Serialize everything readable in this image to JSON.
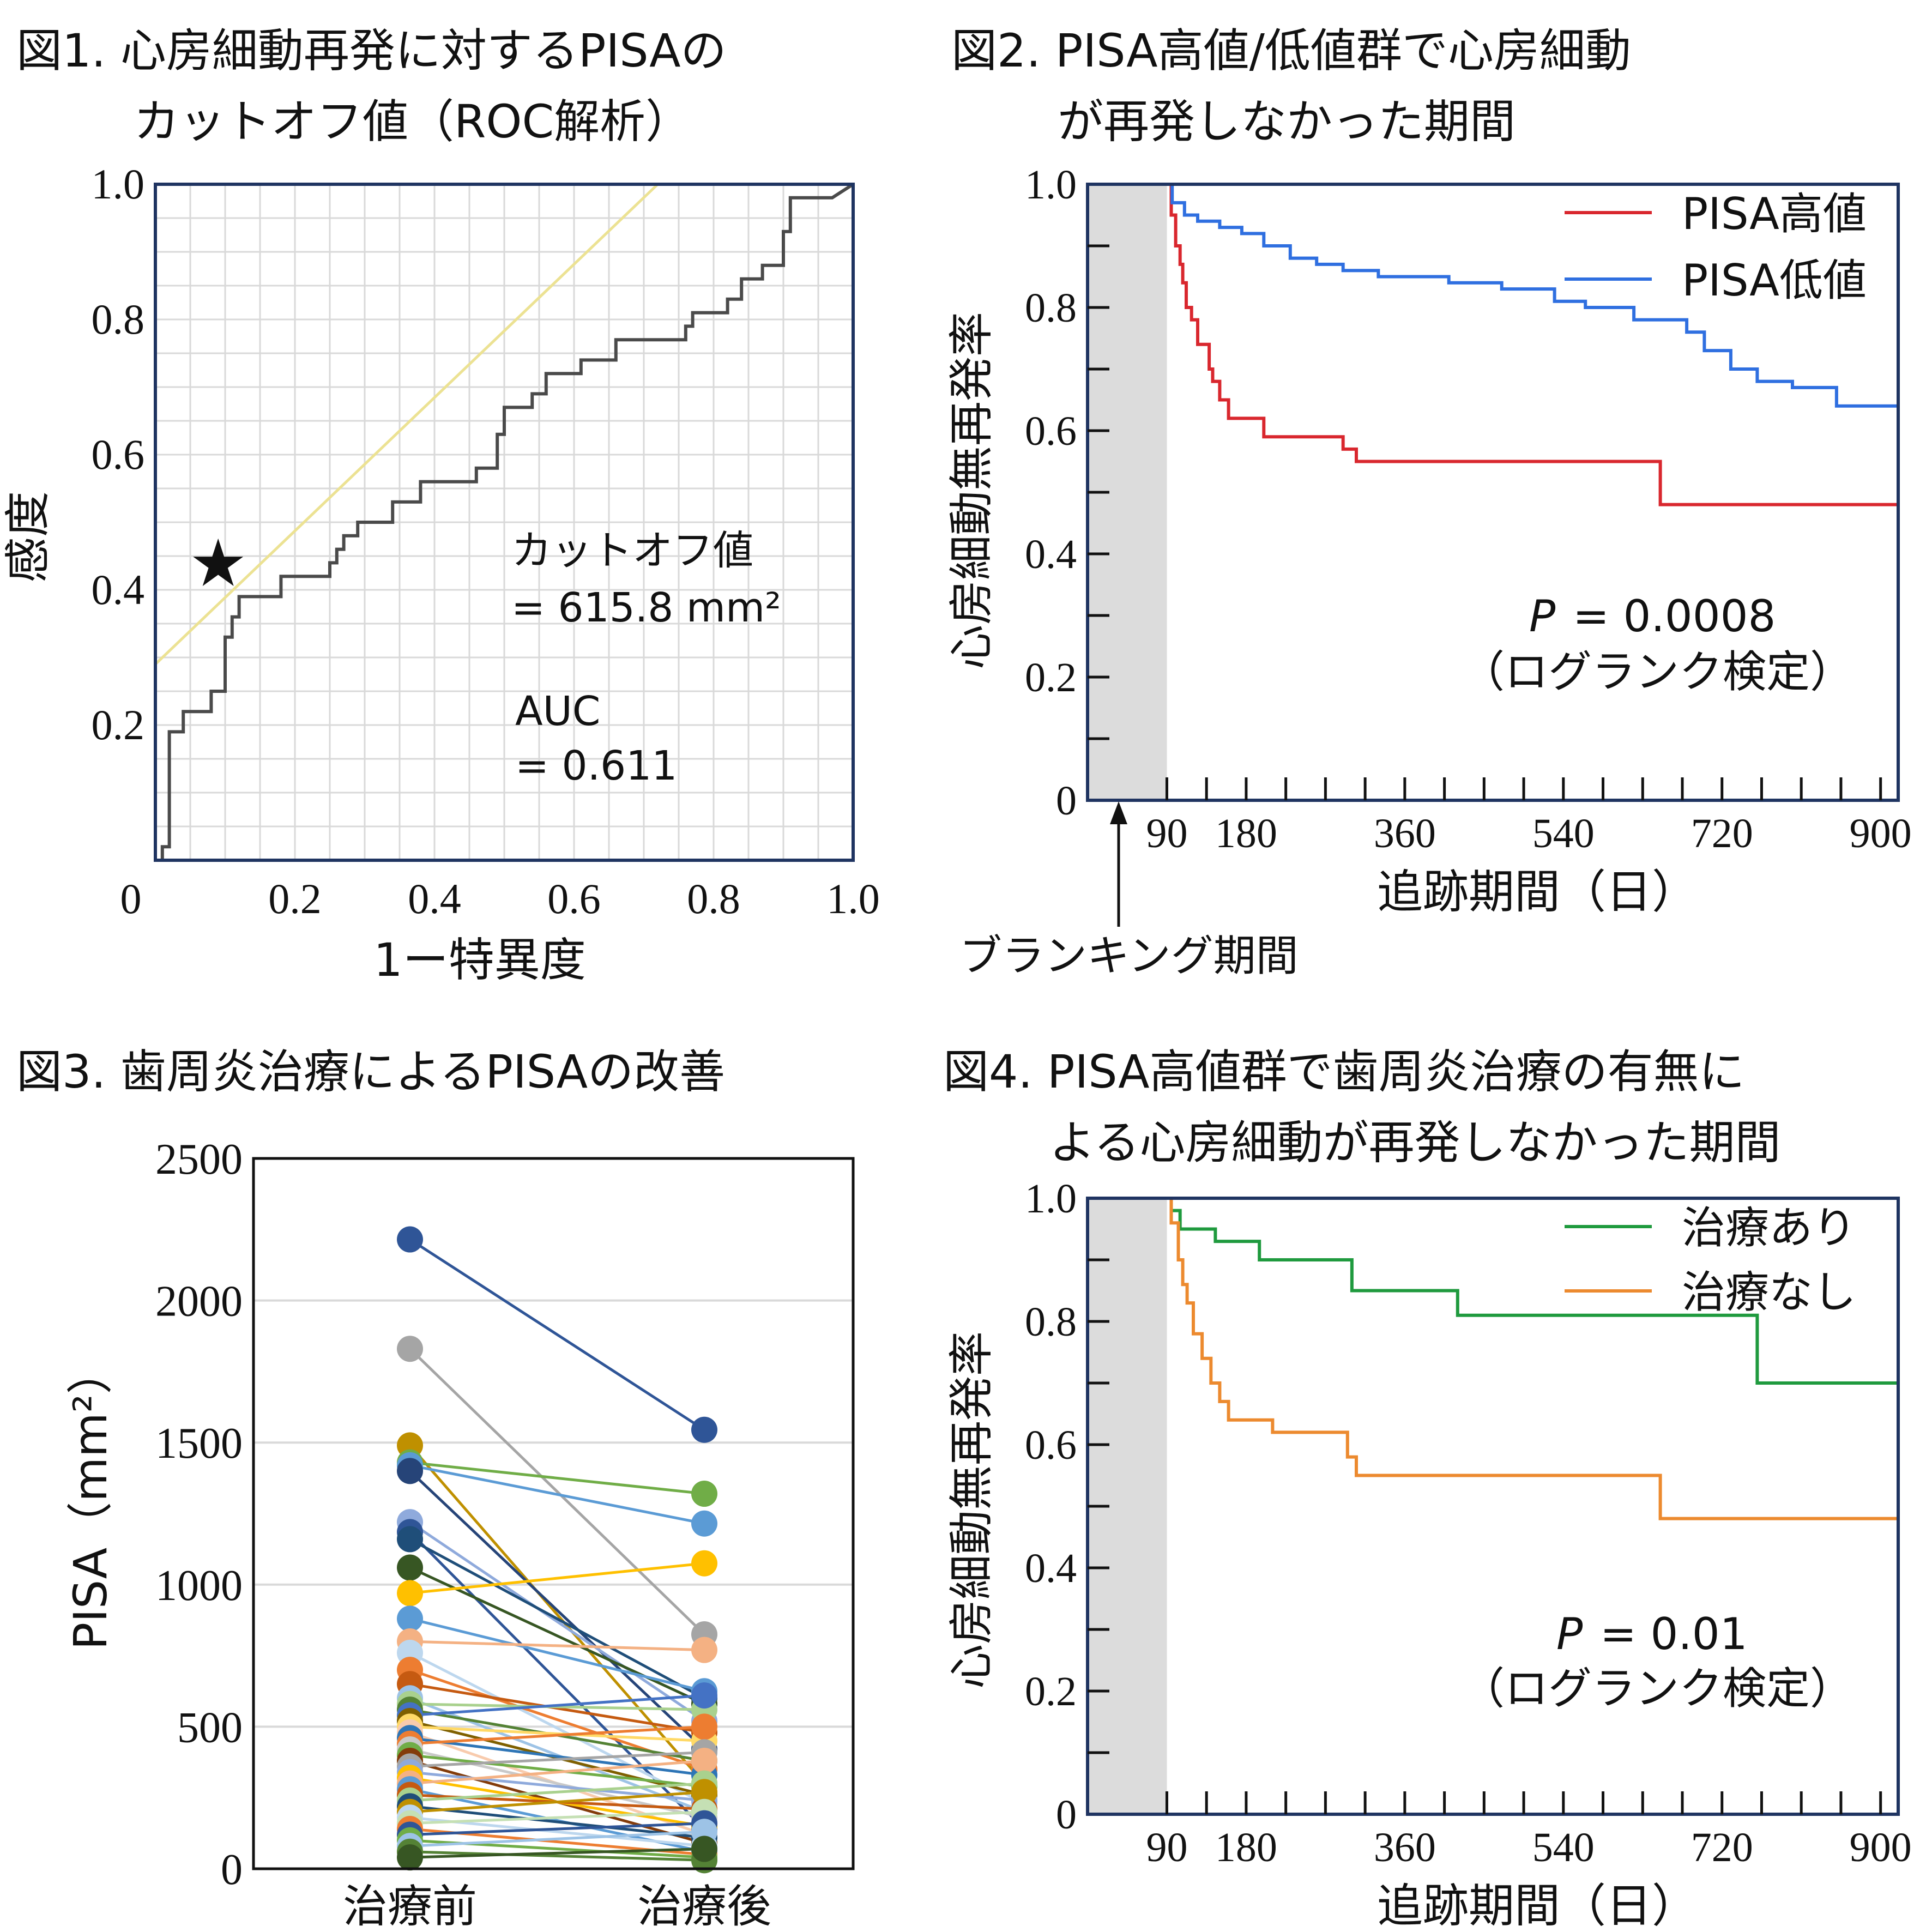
{
  "colors": {
    "roc_line": "#4a4a4a",
    "diagonal": "#ece293",
    "frame": "#1f3461",
    "grid": "#d9d9d9",
    "blanking": "#dcdcdc",
    "pisa_high": "#d9272e",
    "pisa_low": "#2f6fe0",
    "treated": "#1f9a3e",
    "untreated": "#ec8a2f"
  },
  "chart_data": [
    {
      "id": "fig1",
      "type": "line",
      "title": "図1. 心房細動再発に対するPISAの",
      "title_line2": "カットオフ値（ROC解析）",
      "xlabel": "1ー特異度",
      "ylabel": "感度",
      "xlim": [
        0,
        1.0
      ],
      "ylim": [
        0,
        1.0
      ],
      "x_ticks": [
        "0",
        "0.2",
        "0.4",
        "0.6",
        "0.8",
        "1.0"
      ],
      "y_ticks": [
        "0.2",
        "0.4",
        "0.6",
        "0.8",
        "1.0"
      ],
      "grid": true,
      "cutoff_label": "カットオフ値",
      "cutoff_value": "= 615.8 mm²",
      "auc_label": "AUC",
      "auc_value": "= 0.611",
      "marker": "★",
      "cutoff_point": [
        0.09,
        0.44
      ],
      "diagonal": {
        "x": [
          0,
          0.72
        ],
        "y": [
          0.29,
          1.0
        ]
      },
      "roc": {
        "x": [
          0.0,
          0.01,
          0.01,
          0.02,
          0.02,
          0.04,
          0.04,
          0.08,
          0.08,
          0.1,
          0.1,
          0.11,
          0.11,
          0.12,
          0.12,
          0.18,
          0.18,
          0.25,
          0.25,
          0.26,
          0.26,
          0.27,
          0.27,
          0.29,
          0.29,
          0.34,
          0.34,
          0.38,
          0.38,
          0.46,
          0.46,
          0.49,
          0.49,
          0.5,
          0.5,
          0.54,
          0.54,
          0.56,
          0.56,
          0.61,
          0.61,
          0.66,
          0.66,
          0.76,
          0.76,
          0.77,
          0.77,
          0.82,
          0.82,
          0.84,
          0.84,
          0.87,
          0.87,
          0.9,
          0.9,
          0.91,
          0.91,
          0.97,
          1.0
        ],
        "y": [
          0.0,
          0.0,
          0.02,
          0.02,
          0.19,
          0.19,
          0.22,
          0.22,
          0.25,
          0.25,
          0.33,
          0.33,
          0.36,
          0.36,
          0.39,
          0.39,
          0.42,
          0.42,
          0.44,
          0.44,
          0.46,
          0.46,
          0.48,
          0.48,
          0.5,
          0.5,
          0.53,
          0.53,
          0.56,
          0.56,
          0.58,
          0.58,
          0.63,
          0.63,
          0.67,
          0.67,
          0.69,
          0.69,
          0.72,
          0.72,
          0.74,
          0.74,
          0.77,
          0.77,
          0.79,
          0.79,
          0.81,
          0.81,
          0.83,
          0.83,
          0.86,
          0.86,
          0.88,
          0.88,
          0.93,
          0.93,
          0.98,
          0.98,
          1.0
        ]
      }
    },
    {
      "id": "fig2",
      "type": "line",
      "title": "図2. PISA高値/低値群で心房細動",
      "title_line2": "が再発しなかった期間",
      "xlabel": "追跡期間（日）",
      "ylabel": "心房細動無再発率",
      "xlim": [
        0,
        920
      ],
      "ylim": [
        0,
        1.0
      ],
      "x_ticks": [
        "90",
        "180",
        "360",
        "540",
        "720",
        "900"
      ],
      "y_ticks": [
        "0",
        "0.2",
        "0.4",
        "0.6",
        "0.8",
        "1.0"
      ],
      "blanking_label": "ブランキング期間",
      "blanking_days": 90,
      "pvalue_prefix": "P",
      "pvalue": "= 0.0008",
      "test_label": "（ログランク検定）",
      "series": [
        {
          "name": "PISA高値",
          "x": [
            90,
            95,
            95,
            100,
            100,
            105,
            105,
            108,
            108,
            112,
            112,
            118,
            118,
            125,
            125,
            138,
            138,
            142,
            142,
            150,
            150,
            160,
            160,
            200,
            200,
            290,
            290,
            305,
            305,
            650,
            650,
            920
          ],
          "y": [
            1.0,
            1.0,
            0.95,
            0.95,
            0.9,
            0.9,
            0.87,
            0.87,
            0.84,
            0.84,
            0.8,
            0.8,
            0.78,
            0.78,
            0.74,
            0.74,
            0.7,
            0.7,
            0.68,
            0.68,
            0.65,
            0.65,
            0.62,
            0.62,
            0.59,
            0.59,
            0.57,
            0.57,
            0.55,
            0.55,
            0.48,
            0.48
          ]
        },
        {
          "name": "PISA低値",
          "x": [
            90,
            96,
            96,
            110,
            110,
            125,
            125,
            150,
            150,
            175,
            175,
            200,
            200,
            230,
            230,
            260,
            260,
            290,
            290,
            330,
            330,
            410,
            410,
            470,
            470,
            530,
            530,
            565,
            565,
            620,
            620,
            680,
            680,
            700,
            700,
            730,
            730,
            760,
            760,
            800,
            800,
            850,
            850,
            880,
            880,
            920
          ],
          "y": [
            1.0,
            1.0,
            0.97,
            0.97,
            0.95,
            0.95,
            0.94,
            0.94,
            0.93,
            0.93,
            0.92,
            0.92,
            0.9,
            0.9,
            0.88,
            0.88,
            0.87,
            0.87,
            0.86,
            0.86,
            0.85,
            0.85,
            0.84,
            0.84,
            0.83,
            0.83,
            0.81,
            0.81,
            0.8,
            0.8,
            0.78,
            0.78,
            0.76,
            0.76,
            0.73,
            0.73,
            0.7,
            0.7,
            0.68,
            0.68,
            0.67,
            0.67,
            0.64,
            0.64,
            0.64,
            0.64
          ]
        }
      ]
    },
    {
      "id": "fig3",
      "type": "line",
      "title": "図3. 歯周炎治療によるPISAの改善",
      "ylabel": "PISA（mm²）",
      "categories": [
        "治療前",
        "治療後"
      ],
      "ylim": [
        0,
        2500
      ],
      "y_ticks": [
        "0",
        "500",
        "1000",
        "1500",
        "2000",
        "2500"
      ],
      "grid": true,
      "pairs": [
        {
          "before": 2215,
          "after": 1545,
          "color": "#2f5597"
        },
        {
          "before": 1830,
          "after": 825,
          "color": "#a5a5a5"
        },
        {
          "before": 1490,
          "after": 300,
          "color": "#bf9000"
        },
        {
          "before": 1430,
          "after": 1320,
          "color": "#70ad47"
        },
        {
          "before": 1420,
          "after": 1215,
          "color": "#5b9bd5"
        },
        {
          "before": 1400,
          "after": 420,
          "color": "#264478"
        },
        {
          "before": 1220,
          "after": 520,
          "color": "#8faadc"
        },
        {
          "before": 1185,
          "after": 140,
          "color": "#2f5597"
        },
        {
          "before": 1160,
          "after": 600,
          "color": "#1f4e79"
        },
        {
          "before": 1060,
          "after": 580,
          "color": "#375623"
        },
        {
          "before": 970,
          "after": 1075,
          "color": "#ffc000"
        },
        {
          "before": 880,
          "after": 625,
          "color": "#5b9bd5"
        },
        {
          "before": 800,
          "after": 770,
          "color": "#f4b183"
        },
        {
          "before": 760,
          "after": 230,
          "color": "#bdd7ee"
        },
        {
          "before": 700,
          "after": 350,
          "color": "#ed7d31"
        },
        {
          "before": 650,
          "after": 480,
          "color": "#c55a11"
        },
        {
          "before": 600,
          "after": 200,
          "color": "#9dc3e6"
        },
        {
          "before": 580,
          "after": 560,
          "color": "#a9d18e"
        },
        {
          "before": 560,
          "after": 380,
          "color": "#548235"
        },
        {
          "before": 540,
          "after": 610,
          "color": "#4472c4"
        },
        {
          "before": 520,
          "after": 260,
          "color": "#7f6000"
        },
        {
          "before": 500,
          "after": 450,
          "color": "#ffd966"
        },
        {
          "before": 480,
          "after": 120,
          "color": "#f8cbad"
        },
        {
          "before": 460,
          "after": 330,
          "color": "#2e75b6"
        },
        {
          "before": 440,
          "after": 500,
          "color": "#ed7d31"
        },
        {
          "before": 420,
          "after": 180,
          "color": "#c9c9c9"
        },
        {
          "before": 400,
          "after": 290,
          "color": "#70ad47"
        },
        {
          "before": 380,
          "after": 90,
          "color": "#833c0b"
        },
        {
          "before": 360,
          "after": 410,
          "color": "#a5a5a5"
        },
        {
          "before": 340,
          "after": 240,
          "color": "#8faadc"
        },
        {
          "before": 320,
          "after": 150,
          "color": "#ffc000"
        },
        {
          "before": 300,
          "after": 380,
          "color": "#f4b183"
        },
        {
          "before": 280,
          "after": 60,
          "color": "#5b9bd5"
        },
        {
          "before": 260,
          "after": 210,
          "color": "#c55a11"
        },
        {
          "before": 240,
          "after": 300,
          "color": "#a9d18e"
        },
        {
          "before": 220,
          "after": 110,
          "color": "#1f4e79"
        },
        {
          "before": 200,
          "after": 270,
          "color": "#bf9000"
        },
        {
          "before": 180,
          "after": 80,
          "color": "#bdd7ee"
        },
        {
          "before": 160,
          "after": 200,
          "color": "#c5e0b4"
        },
        {
          "before": 140,
          "after": 50,
          "color": "#ed7d31"
        },
        {
          "before": 120,
          "after": 160,
          "color": "#2f5597"
        },
        {
          "before": 100,
          "after": 40,
          "color": "#70ad47"
        },
        {
          "before": 80,
          "after": 130,
          "color": "#9dc3e6"
        },
        {
          "before": 60,
          "after": 30,
          "color": "#548235"
        },
        {
          "before": 40,
          "after": 70,
          "color": "#375623"
        }
      ]
    },
    {
      "id": "fig4",
      "type": "line",
      "title": "図4. PISA高値群で歯周炎治療の有無に",
      "title_line2": "よる心房細動が再発しなかった期間",
      "xlabel": "追跡期間（日）",
      "ylabel": "心房細動無再発率",
      "xlim": [
        0,
        920
      ],
      "ylim": [
        0,
        1.0
      ],
      "x_ticks": [
        "90",
        "180",
        "360",
        "540",
        "720",
        "900"
      ],
      "y_ticks": [
        "0",
        "0.2",
        "0.4",
        "0.6",
        "0.8",
        "1.0"
      ],
      "blanking_days": 90,
      "pvalue_prefix": "P",
      "pvalue": "= 0.01",
      "test_label": "（ログランク検定）",
      "series": [
        {
          "name": "治療あり",
          "x": [
            90,
            95,
            95,
            105,
            105,
            145,
            145,
            195,
            195,
            300,
            300,
            310,
            310,
            420,
            420,
            760,
            760,
            920
          ],
          "y": [
            1.0,
            1.0,
            0.98,
            0.98,
            0.95,
            0.95,
            0.93,
            0.93,
            0.9,
            0.9,
            0.85,
            0.85,
            0.85,
            0.85,
            0.81,
            0.81,
            0.7,
            0.7
          ]
        },
        {
          "name": "治療なし",
          "x": [
            90,
            95,
            95,
            103,
            103,
            108,
            108,
            113,
            113,
            120,
            120,
            130,
            130,
            140,
            140,
            150,
            150,
            160,
            160,
            210,
            210,
            295,
            295,
            305,
            305,
            650,
            650,
            920
          ],
          "y": [
            1.0,
            1.0,
            0.96,
            0.96,
            0.9,
            0.9,
            0.86,
            0.86,
            0.83,
            0.83,
            0.78,
            0.78,
            0.74,
            0.74,
            0.7,
            0.7,
            0.67,
            0.67,
            0.64,
            0.64,
            0.62,
            0.62,
            0.58,
            0.58,
            0.55,
            0.55,
            0.48,
            0.48
          ]
        }
      ]
    }
  ]
}
